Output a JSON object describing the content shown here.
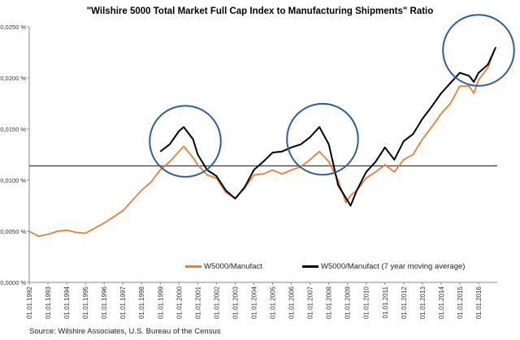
{
  "chart_data": {
    "type": "line",
    "title": "\"Wilshire 5000 Total Market Full Cap Index to Manufacturing Shipments\" Ratio",
    "source": "Source: Wilshire Associates, U.S. Bureau of the Census",
    "xlabel": "",
    "ylabel": "",
    "x_ticks": [
      "01.01.1992",
      "01.01.1993",
      "01.01.1994",
      "01.01.1995",
      "01.01.1996",
      "01.01.1997",
      "01.01.1998",
      "01.01.1999",
      "01.01.2000",
      "01.01.2001",
      "01.01.2002",
      "01.01.2003",
      "01.01.2004",
      "01.01.2005",
      "01.01.2006",
      "01.01.2007",
      "01.01.2008",
      "01.01.2009",
      "01.01.2010",
      "01.01.2011",
      "01.01.2012",
      "01.01.2013",
      "01.01.2014",
      "01.01.2015",
      "01.01.2016"
    ],
    "y_ticks": [
      "0,0000 %",
      "0,0050 %",
      "0,0100 %",
      "0,0150 %",
      "0,0200 %",
      "0,0250 %"
    ],
    "xlim": [
      "1992-01-01",
      "2016-12-31"
    ],
    "ylim": [
      0,
      0.025
    ],
    "grid": false,
    "legend_position": "bottom",
    "series": [
      {
        "name": "W5000/Manufact",
        "color": "#ED7D31",
        "points": [
          [
            "1992-01-01",
            0.005
          ],
          [
            "1992-07-01",
            0.0045
          ],
          [
            "1993-01-01",
            0.0047
          ],
          [
            "1993-07-01",
            0.005
          ],
          [
            "1994-01-01",
            0.0051
          ],
          [
            "1994-07-01",
            0.0049
          ],
          [
            "1995-01-01",
            0.0048
          ],
          [
            "1995-07-01",
            0.0053
          ],
          [
            "1996-01-01",
            0.0058
          ],
          [
            "1996-07-01",
            0.0064
          ],
          [
            "1997-01-01",
            0.007
          ],
          [
            "1997-07-01",
            0.008
          ],
          [
            "1998-01-01",
            0.009
          ],
          [
            "1998-07-01",
            0.0098
          ],
          [
            "1999-01-01",
            0.011
          ],
          [
            "1999-07-01",
            0.0118
          ],
          [
            "2000-01-01",
            0.0128
          ],
          [
            "2000-04-01",
            0.0133
          ],
          [
            "2000-10-01",
            0.0122
          ],
          [
            "2001-01-01",
            0.0115
          ],
          [
            "2001-07-01",
            0.0105
          ],
          [
            "2002-01-01",
            0.0102
          ],
          [
            "2002-07-01",
            0.0088
          ],
          [
            "2003-01-01",
            0.0082
          ],
          [
            "2003-07-01",
            0.0092
          ],
          [
            "2004-01-01",
            0.0105
          ],
          [
            "2004-07-01",
            0.0106
          ],
          [
            "2005-01-01",
            0.011
          ],
          [
            "2005-07-01",
            0.0106
          ],
          [
            "2006-01-01",
            0.011
          ],
          [
            "2006-07-01",
            0.0113
          ],
          [
            "2007-01-01",
            0.012
          ],
          [
            "2007-07-01",
            0.0128
          ],
          [
            "2008-01-01",
            0.0118
          ],
          [
            "2008-07-01",
            0.01
          ],
          [
            "2008-12-01",
            0.0078
          ],
          [
            "2009-03-01",
            0.0085
          ],
          [
            "2009-07-01",
            0.009
          ],
          [
            "2010-01-01",
            0.0102
          ],
          [
            "2010-07-01",
            0.0108
          ],
          [
            "2011-01-01",
            0.0115
          ],
          [
            "2011-07-01",
            0.0108
          ],
          [
            "2012-01-01",
            0.012
          ],
          [
            "2012-07-01",
            0.0125
          ],
          [
            "2013-01-01",
            0.014
          ],
          [
            "2013-07-01",
            0.0152
          ],
          [
            "2014-01-01",
            0.0165
          ],
          [
            "2014-07-01",
            0.0175
          ],
          [
            "2015-01-01",
            0.0192
          ],
          [
            "2015-07-01",
            0.0192
          ],
          [
            "2015-10-01",
            0.0185
          ],
          [
            "2016-01-01",
            0.0198
          ],
          [
            "2016-07-01",
            0.021
          ],
          [
            "2016-12-01",
            0.023
          ]
        ]
      },
      {
        "name": "W5000/Manufact (7 year moving average)",
        "color": "#000000",
        "points": [
          [
            "1999-01-01",
            0.0128
          ],
          [
            "1999-07-01",
            0.0135
          ],
          [
            "2000-01-01",
            0.0148
          ],
          [
            "2000-04-01",
            0.0152
          ],
          [
            "2000-10-01",
            0.014
          ],
          [
            "2001-01-01",
            0.0125
          ],
          [
            "2001-07-01",
            0.011
          ],
          [
            "2002-01-01",
            0.0104
          ],
          [
            "2002-07-01",
            0.009
          ],
          [
            "2003-01-01",
            0.0082
          ],
          [
            "2003-07-01",
            0.0093
          ],
          [
            "2004-01-01",
            0.011
          ],
          [
            "2004-07-01",
            0.0118
          ],
          [
            "2005-01-01",
            0.0127
          ],
          [
            "2005-07-01",
            0.0128
          ],
          [
            "2006-01-01",
            0.0132
          ],
          [
            "2006-07-01",
            0.0135
          ],
          [
            "2007-01-01",
            0.0142
          ],
          [
            "2007-07-01",
            0.0152
          ],
          [
            "2008-01-01",
            0.0135
          ],
          [
            "2008-07-01",
            0.0095
          ],
          [
            "2009-01-01",
            0.008
          ],
          [
            "2009-03-01",
            0.0075
          ],
          [
            "2009-07-01",
            0.009
          ],
          [
            "2010-01-01",
            0.0108
          ],
          [
            "2010-07-01",
            0.0118
          ],
          [
            "2011-01-01",
            0.0132
          ],
          [
            "2011-07-01",
            0.012
          ],
          [
            "2012-01-01",
            0.0138
          ],
          [
            "2012-07-01",
            0.0145
          ],
          [
            "2013-01-01",
            0.016
          ],
          [
            "2013-07-01",
            0.0172
          ],
          [
            "2014-01-01",
            0.0185
          ],
          [
            "2014-07-01",
            0.0195
          ],
          [
            "2015-01-01",
            0.0205
          ],
          [
            "2015-07-01",
            0.0202
          ],
          [
            "2015-10-01",
            0.0196
          ],
          [
            "2016-01-01",
            0.0205
          ],
          [
            "2016-07-01",
            0.0213
          ],
          [
            "2016-12-01",
            0.023
          ]
        ]
      }
    ],
    "reference_line": 0.0114,
    "highlight_circles": [
      {
        "center": [
          "2000-05-01",
          0.0138
        ],
        "radius_years": 1.9
      },
      {
        "center": [
          "2007-09-01",
          0.014
        ],
        "radius_years": 1.9
      },
      {
        "center": [
          "2016-01-01",
          0.0227
        ],
        "radius_years": 1.9
      }
    ]
  }
}
